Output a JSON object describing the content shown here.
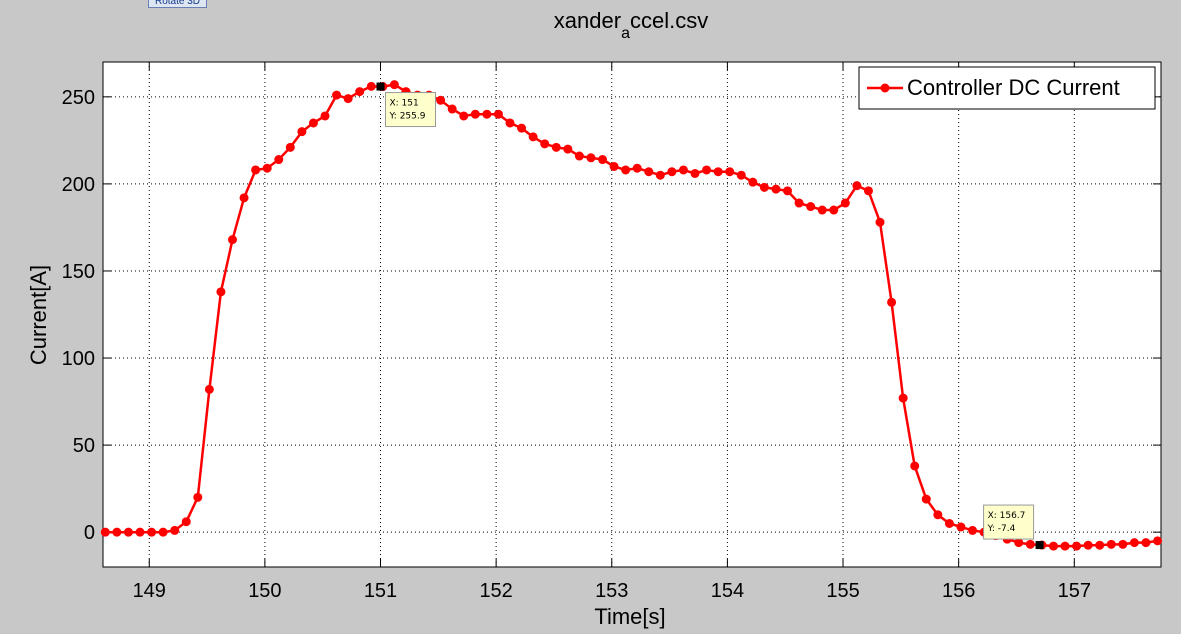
{
  "toolbar": {
    "rotate_label": "Rotate 3D"
  },
  "chart_data": {
    "type": "line",
    "title_main": "xander",
    "title_sub": "a",
    "title_tail": "ccel.csv",
    "xlabel": "Time[s]",
    "ylabel": "Current[A]",
    "xlim": [
      148.6,
      157.75
    ],
    "ylim": [
      -20,
      270
    ],
    "xticks": [
      149,
      150,
      151,
      152,
      153,
      154,
      155,
      156,
      157
    ],
    "yticks": [
      0,
      50,
      100,
      150,
      200,
      250
    ],
    "grid": true,
    "legend_position": "top-right",
    "color": "#ff0000",
    "series": [
      {
        "name": "Controller DC Current",
        "points": [
          [
            148.62,
            0
          ],
          [
            148.72,
            0
          ],
          [
            148.82,
            0
          ],
          [
            148.92,
            0
          ],
          [
            149.02,
            0
          ],
          [
            149.12,
            0
          ],
          [
            149.22,
            1
          ],
          [
            149.32,
            6
          ],
          [
            149.42,
            20
          ],
          [
            149.52,
            82
          ],
          [
            149.62,
            138
          ],
          [
            149.72,
            168
          ],
          [
            149.82,
            192
          ],
          [
            149.92,
            208
          ],
          [
            150.02,
            209
          ],
          [
            150.12,
            214
          ],
          [
            150.22,
            221
          ],
          [
            150.32,
            230
          ],
          [
            150.42,
            235
          ],
          [
            150.52,
            239
          ],
          [
            150.62,
            251
          ],
          [
            150.72,
            249
          ],
          [
            150.82,
            253
          ],
          [
            150.92,
            256
          ],
          [
            151.02,
            255.9
          ],
          [
            151.12,
            257
          ],
          [
            151.22,
            253
          ],
          [
            151.32,
            251
          ],
          [
            151.42,
            251
          ],
          [
            151.52,
            248
          ],
          [
            151.62,
            243
          ],
          [
            151.72,
            239
          ],
          [
            151.82,
            240
          ],
          [
            151.92,
            240
          ],
          [
            152.02,
            240
          ],
          [
            152.12,
            235
          ],
          [
            152.22,
            232
          ],
          [
            152.32,
            227
          ],
          [
            152.42,
            223
          ],
          [
            152.52,
            221
          ],
          [
            152.62,
            220
          ],
          [
            152.72,
            216
          ],
          [
            152.82,
            215
          ],
          [
            152.92,
            214
          ],
          [
            153.02,
            210
          ],
          [
            153.12,
            208
          ],
          [
            153.22,
            209
          ],
          [
            153.32,
            207
          ],
          [
            153.42,
            205
          ],
          [
            153.52,
            207
          ],
          [
            153.62,
            208
          ],
          [
            153.72,
            206
          ],
          [
            153.82,
            208
          ],
          [
            153.92,
            207
          ],
          [
            154.02,
            207
          ],
          [
            154.12,
            205
          ],
          [
            154.22,
            201
          ],
          [
            154.32,
            198
          ],
          [
            154.42,
            197
          ],
          [
            154.52,
            196
          ],
          [
            154.62,
            189
          ],
          [
            154.72,
            187
          ],
          [
            154.82,
            185
          ],
          [
            154.92,
            185
          ],
          [
            155.02,
            189
          ],
          [
            155.12,
            199
          ],
          [
            155.22,
            196
          ],
          [
            155.32,
            178
          ],
          [
            155.42,
            132
          ],
          [
            155.52,
            77
          ],
          [
            155.62,
            38
          ],
          [
            155.72,
            19
          ],
          [
            155.82,
            10
          ],
          [
            155.92,
            5
          ],
          [
            156.02,
            3
          ],
          [
            156.12,
            1
          ],
          [
            156.22,
            0
          ],
          [
            156.32,
            -2
          ],
          [
            156.42,
            -4
          ],
          [
            156.52,
            -6
          ],
          [
            156.62,
            -7
          ],
          [
            156.72,
            -7.4
          ],
          [
            156.82,
            -8
          ],
          [
            156.92,
            -8
          ],
          [
            157.02,
            -8
          ],
          [
            157.12,
            -7.5
          ],
          [
            157.22,
            -7.5
          ],
          [
            157.32,
            -7
          ],
          [
            157.42,
            -7
          ],
          [
            157.52,
            -6
          ],
          [
            157.62,
            -6
          ],
          [
            157.72,
            -5
          ]
        ]
      }
    ],
    "annotations": [
      {
        "x": 151,
        "y": 255.9,
        "label_x": "X: 151",
        "label_y": "Y: 255.9"
      },
      {
        "x": 156.7,
        "y": -7.4,
        "label_x": "X: 156.7",
        "label_y": "Y: -7.4"
      }
    ]
  }
}
